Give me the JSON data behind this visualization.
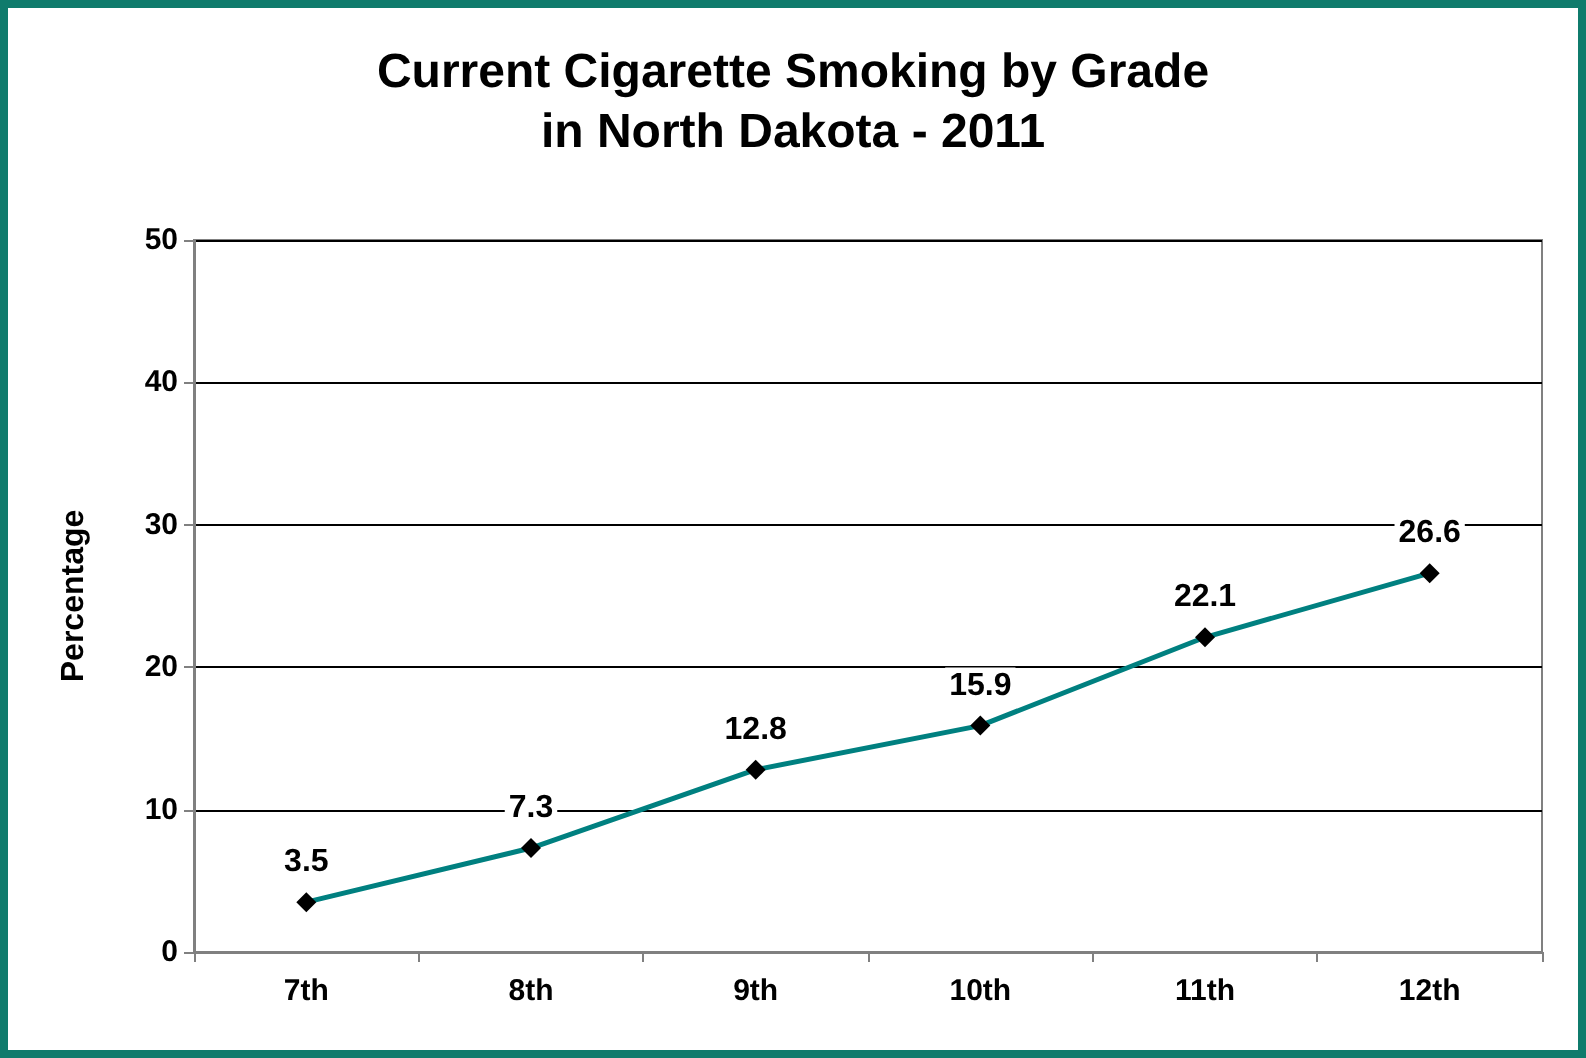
{
  "chart_data": {
    "type": "line",
    "title": "Current Cigarette Smoking by Grade\nin North Dakota - 2011",
    "ylabel": "Percentage",
    "categories": [
      "7th",
      "8th",
      "9th",
      "10th",
      "11th",
      "12th"
    ],
    "series": [
      {
        "color": "#008080",
        "values": [
          3.5,
          7.3,
          12.8,
          15.9,
          22.1,
          26.6
        ]
      }
    ],
    "ylim": [
      0,
      50
    ],
    "yticks": [
      0,
      10,
      20,
      30,
      40,
      50
    ],
    "grid": "y",
    "marker": "diamond",
    "line_style": "solid",
    "data_labels": true
  }
}
